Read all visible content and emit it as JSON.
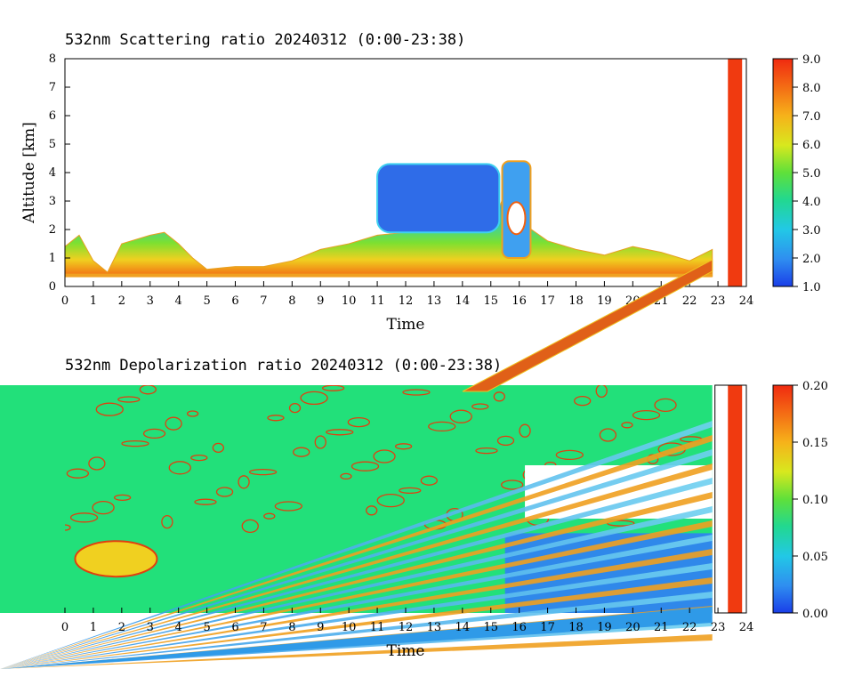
{
  "chart_data": [
    {
      "type": "heatmap",
      "title": "532nm Scattering ratio  20240312 (0:00-23:38)",
      "xlabel": "Time",
      "ylabel": "Altitude [km]",
      "xlim": [
        0,
        24
      ],
      "ylim": [
        0,
        8
      ],
      "x_ticks": [
        "0",
        "1",
        "2",
        "3",
        "4",
        "5",
        "6",
        "7",
        "8",
        "9",
        "10",
        "11",
        "12",
        "13",
        "14",
        "15",
        "16",
        "17",
        "18",
        "19",
        "20",
        "21",
        "22",
        "23",
        "24"
      ],
      "y_ticks": [
        "0",
        "1",
        "2",
        "3",
        "4",
        "5",
        "6",
        "7",
        "8"
      ],
      "colorbar": {
        "range": [
          1.0,
          9.0
        ],
        "ticks": [
          "1.0",
          "2.0",
          "3.0",
          "4.0",
          "5.0",
          "6.0",
          "7.0",
          "8.0",
          "9.0"
        ]
      },
      "data_end_time": 22.8,
      "gap_band": [
        23.35,
        23.85
      ],
      "features": [
        {
          "desc": "low layer top profile",
          "x": [
            0,
            0.5,
            1,
            1.5,
            2,
            3,
            3.5,
            4,
            4.5,
            5,
            6,
            7,
            8,
            9,
            10,
            11,
            12,
            13,
            14,
            15,
            15.5,
            16,
            17,
            18,
            19,
            20,
            21,
            22,
            22.8
          ],
          "top": [
            1.4,
            1.8,
            0.9,
            0.5,
            1.5,
            1.8,
            1.9,
            1.5,
            1.0,
            0.6,
            0.7,
            0.7,
            0.9,
            1.3,
            1.5,
            1.8,
            1.9,
            2.0,
            1.9,
            2.0,
            3.3,
            2.3,
            1.6,
            1.3,
            1.1,
            1.4,
            1.2,
            0.9,
            1.3
          ]
        },
        {
          "desc": "mid-level cloud",
          "x0": 11.0,
          "x1": 15.3,
          "y0": 1.9,
          "y1": 4.3
        },
        {
          "desc": "convective cell",
          "x0": 15.4,
          "x1": 16.4,
          "y0": 1.0,
          "y1": 4.4
        }
      ]
    },
    {
      "type": "heatmap",
      "title": "532nm Depolarization ratio  20240312 (0:00-23:38)",
      "xlabel": "Time",
      "ylabel": "",
      "xlim": [
        0,
        24
      ],
      "ylim": [
        0,
        8
      ],
      "x_ticks": [
        "0",
        "1",
        "2",
        "3",
        "4",
        "5",
        "6",
        "7",
        "8",
        "9",
        "10",
        "11",
        "12",
        "13",
        "14",
        "15",
        "16",
        "17",
        "18",
        "19",
        "20",
        "21",
        "22",
        "23",
        "24"
      ],
      "colorbar": {
        "range": [
          0.0,
          0.2
        ],
        "ticks": [
          "0.00",
          "0.05",
          "0.10",
          "0.15",
          "0.20"
        ]
      },
      "data_end_time": 22.8,
      "gap_band": [
        23.35,
        23.85
      ]
    }
  ]
}
